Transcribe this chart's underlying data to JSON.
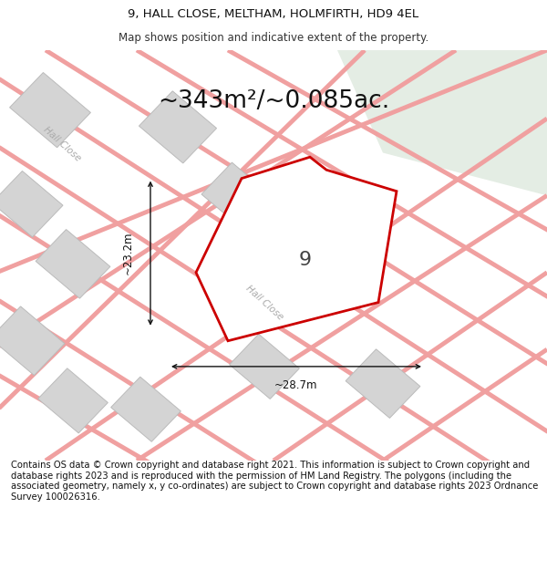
{
  "title_line1": "9, HALL CLOSE, MELTHAM, HOLMFIRTH, HD9 4EL",
  "title_line2": "Map shows position and indicative extent of the property.",
  "area_text": "~343m²/~0.085ac.",
  "number_label": "9",
  "dim_horizontal": "~28.7m",
  "dim_vertical": "~23.2m",
  "road_label_1": "Hall Close",
  "road_label_2": "Hall Close",
  "footer_text": "Contains OS data © Crown copyright and database right 2021. This information is subject to Crown copyright and database rights 2023 and is reproduced with the permission of HM Land Registry. The polygons (including the associated geometry, namely x, y co-ordinates) are subject to Crown copyright and database rights 2023 Ordnance Survey 100026316.",
  "bg_color": "#ffffff",
  "map_bg_color": "#f8f8f8",
  "plot_outline_color": "#cc0000",
  "road_color": "#f0a0a0",
  "building_color": "#d4d4d4",
  "building_outline": "#bbbbbb",
  "green_area_color": "#e4ede4",
  "dim_line_color": "#111111",
  "road_lw": 3.5,
  "footer_fontsize": 7.2,
  "title_fontsize": 9.5,
  "subtitle_fontsize": 8.5,
  "area_fontsize": 19,
  "number_fontsize": 16
}
